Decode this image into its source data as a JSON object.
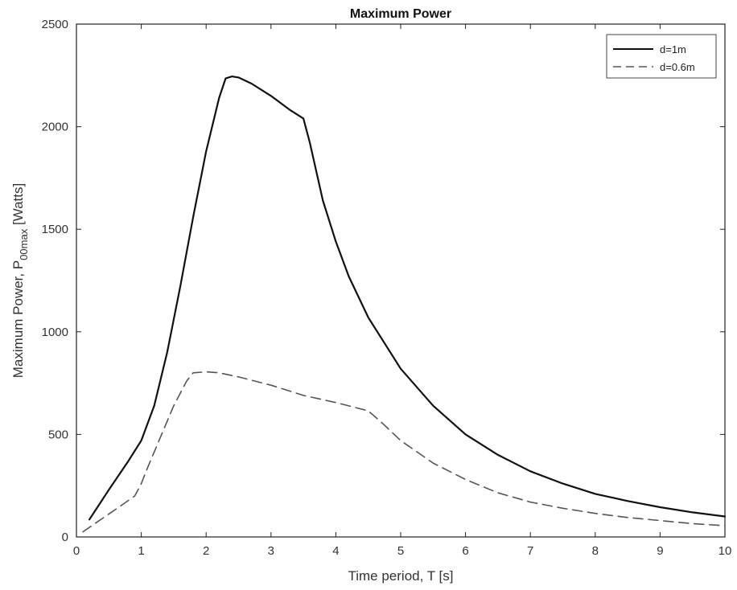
{
  "chart_data": {
    "type": "line",
    "title": "Maximum Power",
    "xlabel": "Time period, T [s]",
    "ylabel": {
      "main": "Maximum Power, P",
      "subscript": "00max",
      "unit": " [Watts]"
    },
    "xlim": [
      0,
      10
    ],
    "ylim": [
      0,
      2500
    ],
    "xticks": [
      0,
      1,
      2,
      3,
      4,
      5,
      6,
      7,
      8,
      9,
      10
    ],
    "yticks": [
      0,
      500,
      1000,
      1500,
      2000,
      2500
    ],
    "grid": false,
    "legend_position": "top-right",
    "series": [
      {
        "name": "d=1m",
        "style": "solid",
        "color": "#111111",
        "x": [
          0.2,
          0.5,
          0.8,
          1.0,
          1.2,
          1.4,
          1.6,
          1.8,
          2.0,
          2.2,
          2.3,
          2.4,
          2.5,
          2.7,
          3.0,
          3.3,
          3.5,
          3.6,
          3.8,
          4.0,
          4.2,
          4.5,
          5.0,
          5.5,
          6.0,
          6.5,
          7.0,
          7.5,
          8.0,
          8.5,
          9.0,
          9.5,
          10.0
        ],
        "y": [
          85,
          230,
          370,
          470,
          640,
          900,
          1220,
          1560,
          1880,
          2140,
          2235,
          2245,
          2240,
          2210,
          2150,
          2080,
          2040,
          1920,
          1640,
          1440,
          1270,
          1070,
          820,
          640,
          500,
          400,
          320,
          260,
          210,
          175,
          145,
          120,
          100
        ]
      },
      {
        "name": "d=0.6m",
        "style": "dashed",
        "color": "#555555",
        "x": [
          0.1,
          0.4,
          0.7,
          0.9,
          1.0,
          1.1,
          1.3,
          1.5,
          1.7,
          1.8,
          2.0,
          2.2,
          2.5,
          3.0,
          3.5,
          4.0,
          4.5,
          4.7,
          5.0,
          5.5,
          6.0,
          6.5,
          7.0,
          7.5,
          8.0,
          8.5,
          9.0,
          9.5,
          10.0
        ],
        "y": [
          25,
          90,
          155,
          200,
          260,
          340,
          490,
          640,
          760,
          800,
          805,
          800,
          780,
          740,
          690,
          655,
          615,
          560,
          470,
          360,
          280,
          215,
          170,
          140,
          115,
          95,
          80,
          65,
          55
        ]
      }
    ]
  }
}
